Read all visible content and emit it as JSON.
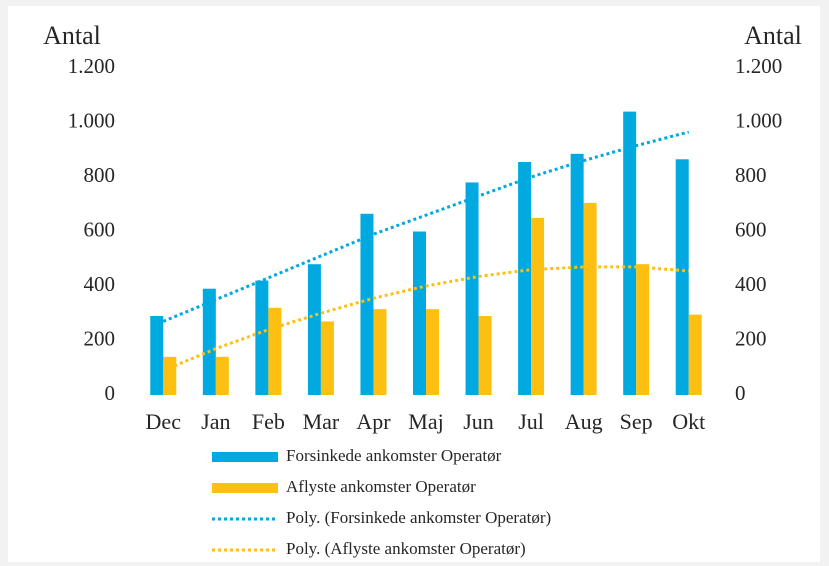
{
  "chart_data": {
    "type": "bar",
    "y_label": "Antal",
    "y2_label": "Antal",
    "categories": [
      "Dec",
      "Jan",
      "Feb",
      "Mar",
      "Apr",
      "Maj",
      "Jun",
      "Jul",
      "Aug",
      "Sep",
      "Okt"
    ],
    "series": [
      {
        "name": "Forsinkede ankomster Operatør",
        "color": "#00a9e0",
        "kind": "bar",
        "values": [
          290,
          390,
          420,
          480,
          665,
          600,
          780,
          855,
          885,
          1040,
          865
        ]
      },
      {
        "name": "Aflyste ankomster Operatør",
        "color": "#fcbf12",
        "kind": "bar",
        "values": [
          140,
          140,
          320,
          270,
          315,
          315,
          290,
          650,
          705,
          480,
          295
        ]
      },
      {
        "name": "Poly. (Forsinkede ankomster Operatør)",
        "color": "#00a9e0",
        "kind": "trend",
        "values": [
          270,
          350,
          430,
          510,
          590,
          660,
          730,
          800,
          860,
          915,
          965
        ]
      },
      {
        "name": "Poly. (Aflyste ankomster Operatør)",
        "color": "#fcbf12",
        "kind": "trend",
        "values": [
          90,
          170,
          240,
          300,
          355,
          400,
          435,
          460,
          470,
          470,
          455
        ]
      }
    ],
    "ylim": [
      0,
      1200
    ],
    "yticks": [
      0,
      200,
      400,
      600,
      800,
      {
        "value": 1000,
        "label": "1.000"
      },
      {
        "value": 1200,
        "label": "1.200"
      }
    ],
    "y2lim": [
      0,
      1200
    ],
    "y2ticks": [
      0,
      200,
      400,
      600,
      800,
      {
        "value": 1000,
        "label": "1.000"
      },
      {
        "value": 1200,
        "label": "1.200"
      }
    ],
    "grid": false,
    "legend": "bottom"
  }
}
